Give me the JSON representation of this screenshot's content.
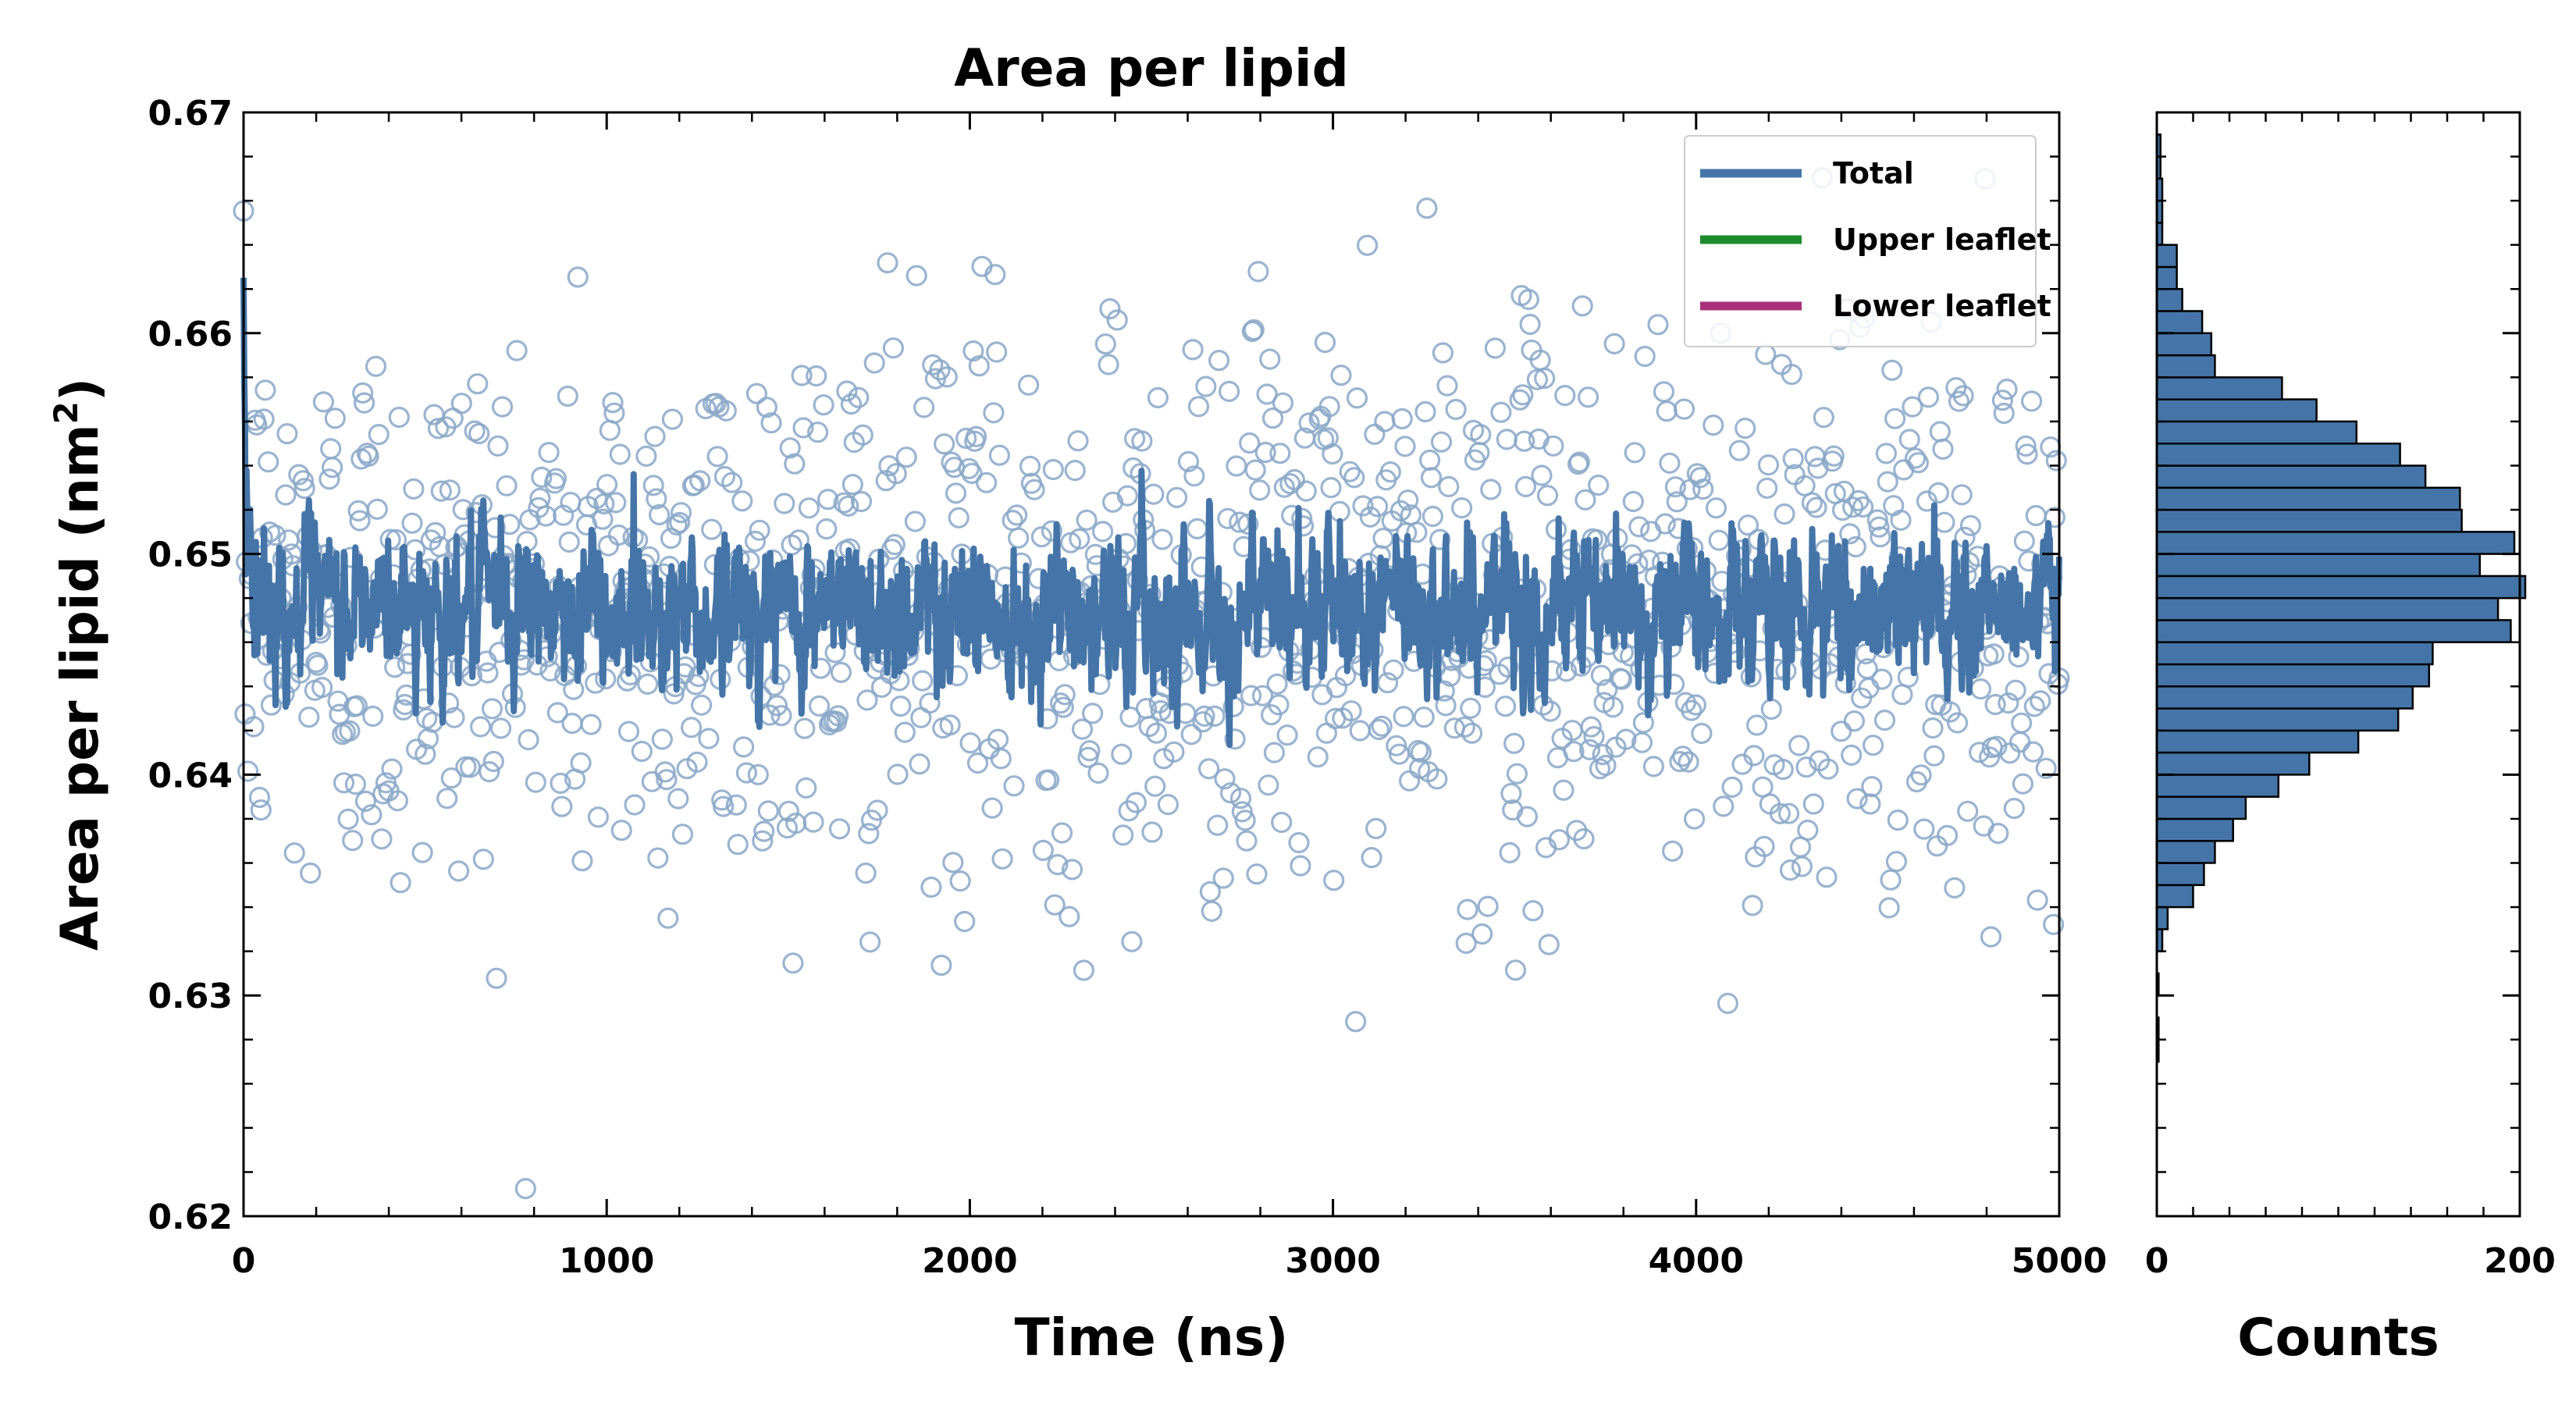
{
  "chart_data": [
    {
      "type": "scatter",
      "title": "Area per lipid",
      "xlabel": "Time (ns)",
      "ylabel": "Area per lipid (nm",
      "ylabel_sup": "2",
      "ylabel_close": ")",
      "xlim": [
        0,
        5000
      ],
      "ylim": [
        0.62,
        0.67
      ],
      "xticks": [
        0,
        1000,
        2000,
        3000,
        4000,
        5000
      ],
      "xtick_labels": [
        "0",
        "1000",
        "2000",
        "3000",
        "4000",
        "5000"
      ],
      "yticks": [
        0.62,
        0.63,
        0.64,
        0.65,
        0.66,
        0.67
      ],
      "ytick_labels": [
        "0.62",
        "0.63",
        "0.64",
        "0.65",
        "0.66",
        "0.67"
      ],
      "grid": false,
      "legend_position": "top-right",
      "series": [
        {
          "name": "Total",
          "color": "#4575a8",
          "kind": "line",
          "mean": 0.6475,
          "start": 0.66,
          "fluctuation": 0.0017,
          "points": 2500
        },
        {
          "name": "Upper leaflet",
          "color": "#1e8b2e",
          "kind": "line",
          "visible_data": false
        },
        {
          "name": "Lower leaflet",
          "color": "#a8307a",
          "kind": "line",
          "visible_data": false
        }
      ],
      "scatter": {
        "color": "#8aa7c7",
        "mean": 0.6475,
        "std": 0.0065,
        "count": 1250,
        "marker": "open-circle"
      }
    },
    {
      "type": "bar",
      "orientation": "horizontal",
      "xlabel": "Counts",
      "xlim": [
        0,
        200
      ],
      "xticks": [
        0,
        200
      ],
      "xtick_labels": [
        "0",
        "200"
      ],
      "ylim": [
        0.62,
        0.67
      ],
      "bin_width": 0.001,
      "bins": [
        {
          "lo": 0.627,
          "hi": 0.628,
          "count": 1
        },
        {
          "lo": 0.628,
          "hi": 0.629,
          "count": 1
        },
        {
          "lo": 0.63,
          "hi": 0.631,
          "count": 1
        },
        {
          "lo": 0.632,
          "hi": 0.633,
          "count": 3
        },
        {
          "lo": 0.633,
          "hi": 0.634,
          "count": 6
        },
        {
          "lo": 0.634,
          "hi": 0.635,
          "count": 20
        },
        {
          "lo": 0.635,
          "hi": 0.636,
          "count": 26
        },
        {
          "lo": 0.636,
          "hi": 0.637,
          "count": 32
        },
        {
          "lo": 0.637,
          "hi": 0.638,
          "count": 42
        },
        {
          "lo": 0.638,
          "hi": 0.639,
          "count": 49
        },
        {
          "lo": 0.639,
          "hi": 0.64,
          "count": 67
        },
        {
          "lo": 0.64,
          "hi": 0.641,
          "count": 84
        },
        {
          "lo": 0.641,
          "hi": 0.642,
          "count": 111
        },
        {
          "lo": 0.642,
          "hi": 0.643,
          "count": 133
        },
        {
          "lo": 0.643,
          "hi": 0.644,
          "count": 141
        },
        {
          "lo": 0.644,
          "hi": 0.645,
          "count": 150
        },
        {
          "lo": 0.645,
          "hi": 0.646,
          "count": 152
        },
        {
          "lo": 0.646,
          "hi": 0.647,
          "count": 195
        },
        {
          "lo": 0.647,
          "hi": 0.648,
          "count": 188
        },
        {
          "lo": 0.648,
          "hi": 0.649,
          "count": 203
        },
        {
          "lo": 0.649,
          "hi": 0.65,
          "count": 178
        },
        {
          "lo": 0.65,
          "hi": 0.651,
          "count": 197
        },
        {
          "lo": 0.651,
          "hi": 0.652,
          "count": 168
        },
        {
          "lo": 0.652,
          "hi": 0.653,
          "count": 167
        },
        {
          "lo": 0.653,
          "hi": 0.654,
          "count": 148
        },
        {
          "lo": 0.654,
          "hi": 0.655,
          "count": 134
        },
        {
          "lo": 0.655,
          "hi": 0.656,
          "count": 110
        },
        {
          "lo": 0.656,
          "hi": 0.657,
          "count": 88
        },
        {
          "lo": 0.657,
          "hi": 0.658,
          "count": 69
        },
        {
          "lo": 0.658,
          "hi": 0.659,
          "count": 32
        },
        {
          "lo": 0.659,
          "hi": 0.66,
          "count": 30
        },
        {
          "lo": 0.66,
          "hi": 0.661,
          "count": 25
        },
        {
          "lo": 0.661,
          "hi": 0.662,
          "count": 14
        },
        {
          "lo": 0.662,
          "hi": 0.663,
          "count": 11
        },
        {
          "lo": 0.663,
          "hi": 0.664,
          "count": 11
        },
        {
          "lo": 0.664,
          "hi": 0.665,
          "count": 3
        },
        {
          "lo": 0.665,
          "hi": 0.666,
          "count": 3
        },
        {
          "lo": 0.666,
          "hi": 0.667,
          "count": 3
        },
        {
          "lo": 0.667,
          "hi": 0.668,
          "count": 2
        },
        {
          "lo": 0.668,
          "hi": 0.669,
          "count": 2
        }
      ],
      "bar_color": "#4575a8",
      "edge_color": "#000000"
    }
  ]
}
